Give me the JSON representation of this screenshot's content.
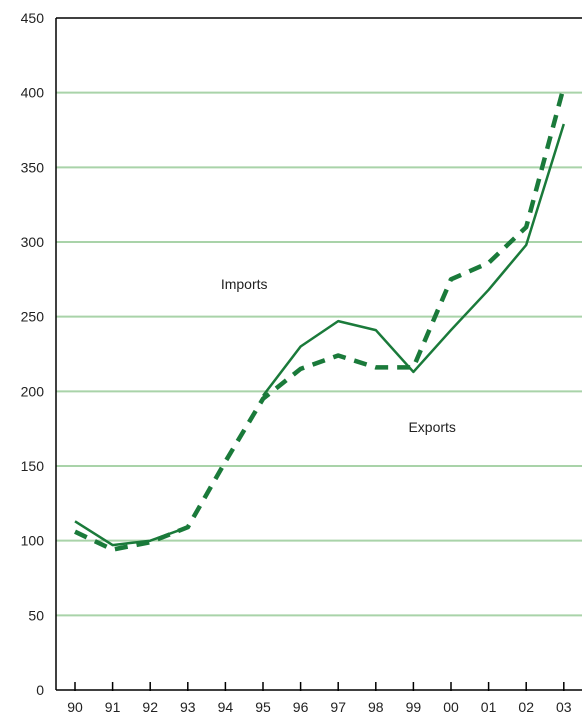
{
  "chart_data": {
    "type": "line",
    "title": "",
    "xlabel": "",
    "ylabel": "",
    "categories": [
      "90",
      "91",
      "92",
      "93",
      "94",
      "95",
      "96",
      "97",
      "98",
      "99",
      "00",
      "01",
      "02",
      "03"
    ],
    "ylim": [
      0,
      450
    ],
    "yticks": [
      0,
      50,
      100,
      150,
      200,
      250,
      300,
      350,
      400,
      450
    ],
    "grid": true,
    "colors": {
      "series": "#1a7a3a",
      "grid": "#a9d3a9",
      "axis": "#000000"
    },
    "series": [
      {
        "name": "Imports",
        "style": "solid",
        "values": [
          113,
          97,
          100,
          109,
          null,
          197,
          230,
          247,
          241,
          213,
          241,
          268,
          298,
          379
        ]
      },
      {
        "name": "Exports",
        "style": "dashed",
        "values": [
          106,
          94,
          99,
          109,
          153,
          195,
          215,
          224,
          216,
          216,
          275,
          286,
          310,
          404
        ]
      }
    ],
    "annotations": [
      {
        "text": "Imports",
        "x": "94.5",
        "y": 272
      },
      {
        "text": "Exports",
        "x": "99.5",
        "y": 176
      }
    ]
  }
}
